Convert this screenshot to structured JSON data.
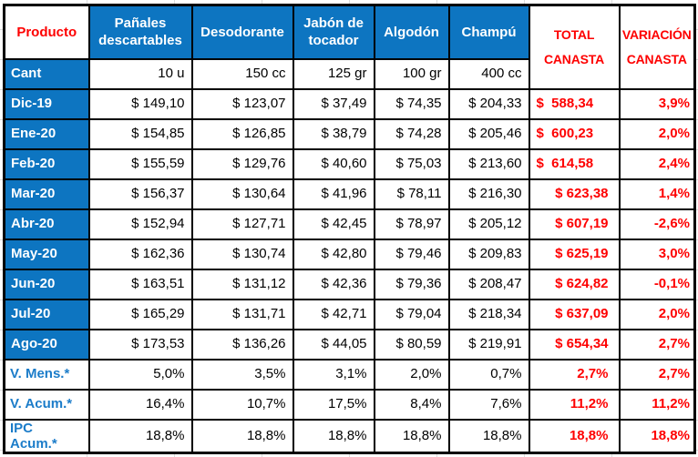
{
  "colors": {
    "header_blue": "#0D75C1",
    "accent_red": "#FE0000",
    "label_text_blue": "#1B7CC9",
    "border_black": "#000000",
    "gridline_gray": "#DCDCDC"
  },
  "chart_data": {
    "type": "table",
    "corner_label": "Producto",
    "cant_label": "Cant",
    "total_header": "TOTAL CANASTA",
    "variation_header": "VARIACIÓN CANASTA",
    "product_columns": [
      {
        "name": "Pañales descartables",
        "quantity": "10 u"
      },
      {
        "name": "Desodorante",
        "quantity": "150 cc"
      },
      {
        "name": "Jabón de tocador",
        "quantity": "125 gr"
      },
      {
        "name": "Algodón",
        "quantity": "100 gr"
      },
      {
        "name": "Champú",
        "quantity": "400 cc"
      }
    ],
    "rows": [
      {
        "label": "Dic-19",
        "values": [
          "$ 149,10",
          "$ 123,07",
          "$ 37,49",
          "$ 74,35",
          "$ 204,33"
        ],
        "total": "$  588,34",
        "variation": "3,9%"
      },
      {
        "label": "Ene-20",
        "values": [
          "$ 154,85",
          "$ 126,85",
          "$ 38,79",
          "$ 74,28",
          "$ 205,46"
        ],
        "total": "$  600,23",
        "variation": "2,0%"
      },
      {
        "label": "Feb-20",
        "values": [
          "$ 155,59",
          "$ 129,76",
          "$ 40,60",
          "$ 75,03",
          "$ 213,60"
        ],
        "total": "$  614,58",
        "variation": "2,4%"
      },
      {
        "label": "Mar-20",
        "values": [
          "$ 156,37",
          "$ 130,64",
          "$ 41,96",
          "$ 78,11",
          "$ 216,30"
        ],
        "total": "$ 623,38",
        "variation": "1,4%"
      },
      {
        "label": "Abr-20",
        "values": [
          "$ 152,94",
          "$ 127,71",
          "$ 42,45",
          "$ 78,97",
          "$ 205,12"
        ],
        "total": "$ 607,19",
        "variation": "-2,6%"
      },
      {
        "label": "May-20",
        "values": [
          "$ 162,36",
          "$ 130,74",
          "$ 42,80",
          "$ 79,46",
          "$ 209,83"
        ],
        "total": "$ 625,19",
        "variation": "3,0%"
      },
      {
        "label": "Jun-20",
        "values": [
          "$ 163,51",
          "$ 131,12",
          "$ 42,36",
          "$ 79,36",
          "$ 208,47"
        ],
        "total": "$ 624,82",
        "variation": "-0,1%"
      },
      {
        "label": "Jul-20",
        "values": [
          "$ 165,29",
          "$ 131,71",
          "$ 42,71",
          "$ 79,04",
          "$ 218,34"
        ],
        "total": "$ 637,09",
        "variation": "2,0%"
      },
      {
        "label": "Ago-20",
        "values": [
          "$ 173,53",
          "$ 136,26",
          "$ 44,05",
          "$ 80,59",
          "$ 219,91"
        ],
        "total": "$ 654,34",
        "variation": "2,7%"
      }
    ],
    "summary_rows": [
      {
        "label": "V. Mens.*",
        "values": [
          "5,0%",
          "3,5%",
          "3,1%",
          "2,0%",
          "0,7%"
        ],
        "total": "2,7%",
        "variation": "2,7%"
      },
      {
        "label": "V. Acum.*",
        "values": [
          "16,4%",
          "10,7%",
          "17,5%",
          "8,4%",
          "7,6%"
        ],
        "total": "11,2%",
        "variation": "11,2%"
      },
      {
        "label": "IPC Acum.*",
        "values": [
          "18,8%",
          "18,8%",
          "18,8%",
          "18,8%",
          "18,8%"
        ],
        "total": "18,8%",
        "variation": "18,8%"
      }
    ]
  }
}
